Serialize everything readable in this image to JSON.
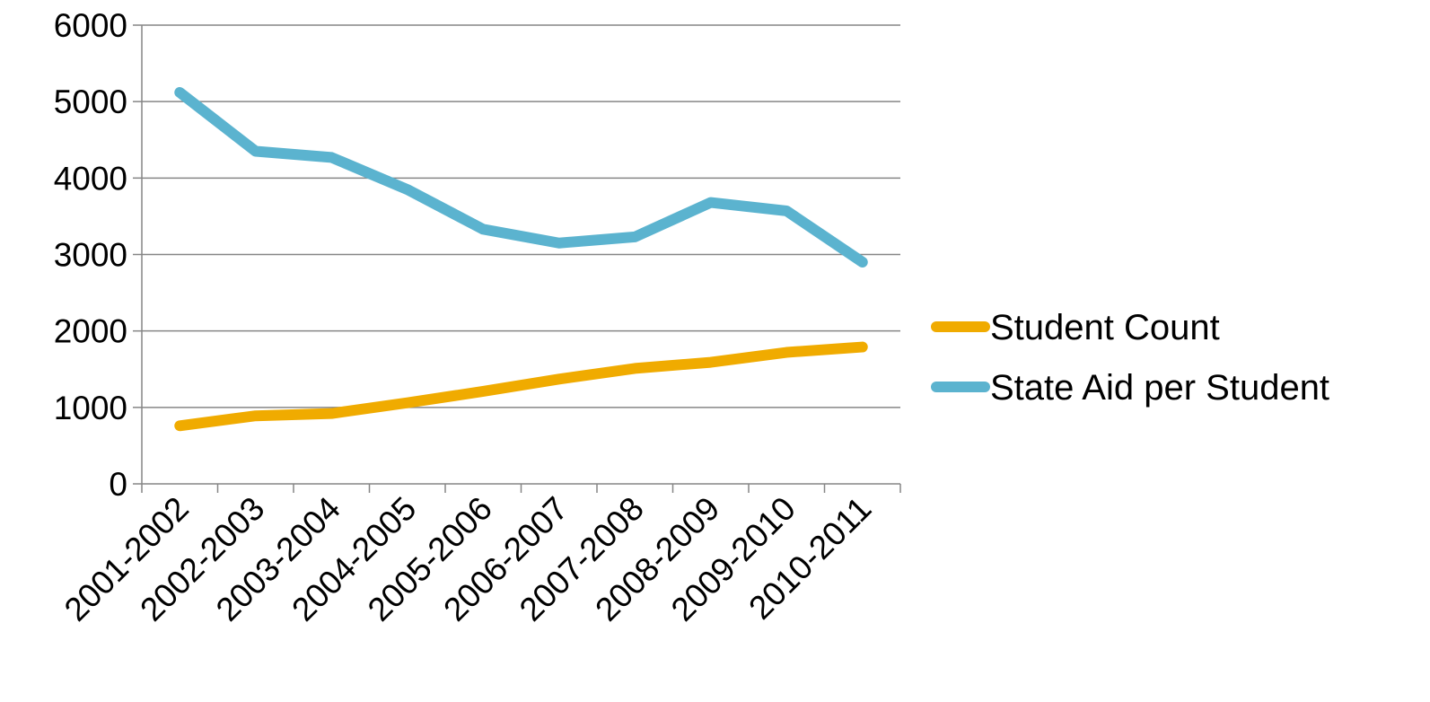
{
  "chart_data": {
    "type": "line",
    "categories": [
      "2001-2002",
      "2002-2003",
      "2003-2004",
      "2004-2005",
      "2005-2006",
      "2006-2007",
      "2007-2008",
      "2008-2009",
      "2009-2010",
      "2010-2011"
    ],
    "series": [
      {
        "name": "Student Count",
        "color": "#F0AB00",
        "values": [
          760,
          890,
          920,
          1060,
          1210,
          1370,
          1510,
          1590,
          1720,
          1790
        ]
      },
      {
        "name": "State Aid per Student",
        "color": "#5BB3CF",
        "values": [
          5120,
          4350,
          4270,
          3850,
          3330,
          3150,
          3230,
          3680,
          3570,
          2900
        ]
      }
    ],
    "ylim": [
      0,
      6000
    ],
    "yticks": [
      "0",
      "1000",
      "2000",
      "3000",
      "4000",
      "5000",
      "6000"
    ],
    "title": "",
    "xlabel": "",
    "ylabel": "",
    "grid": "horizontal",
    "legend": "right"
  }
}
